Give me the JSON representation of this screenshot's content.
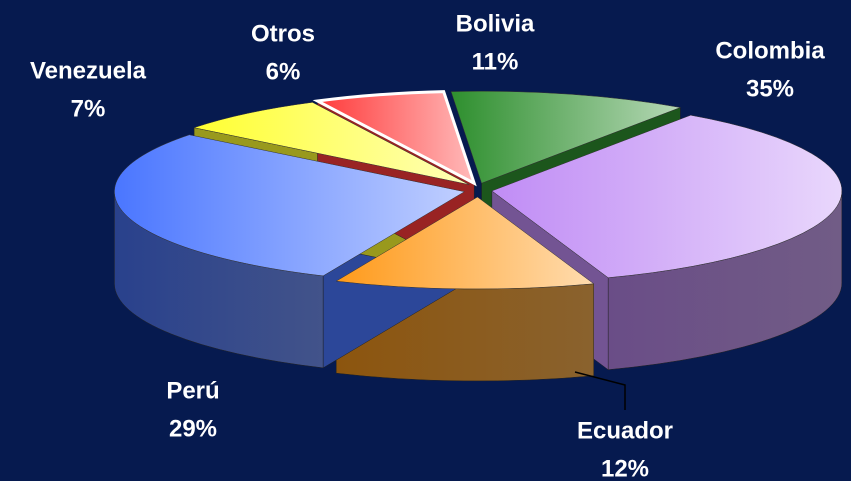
{
  "chart_data": {
    "type": "pie3d",
    "categories": [
      "Bolivia",
      "Colombia",
      "Ecuador",
      "Perú",
      "Venezuela",
      "Otros"
    ],
    "values": [
      11,
      35,
      12,
      29,
      7,
      6
    ],
    "value_labels": [
      "11%",
      "35%",
      "12%",
      "29%",
      "7%",
      "6%"
    ],
    "colors": [
      "#2e8f2e",
      "#c08cf5",
      "#ff9a1a",
      "#4a76ff",
      "#ffff30",
      "#ff3a3a"
    ]
  }
}
